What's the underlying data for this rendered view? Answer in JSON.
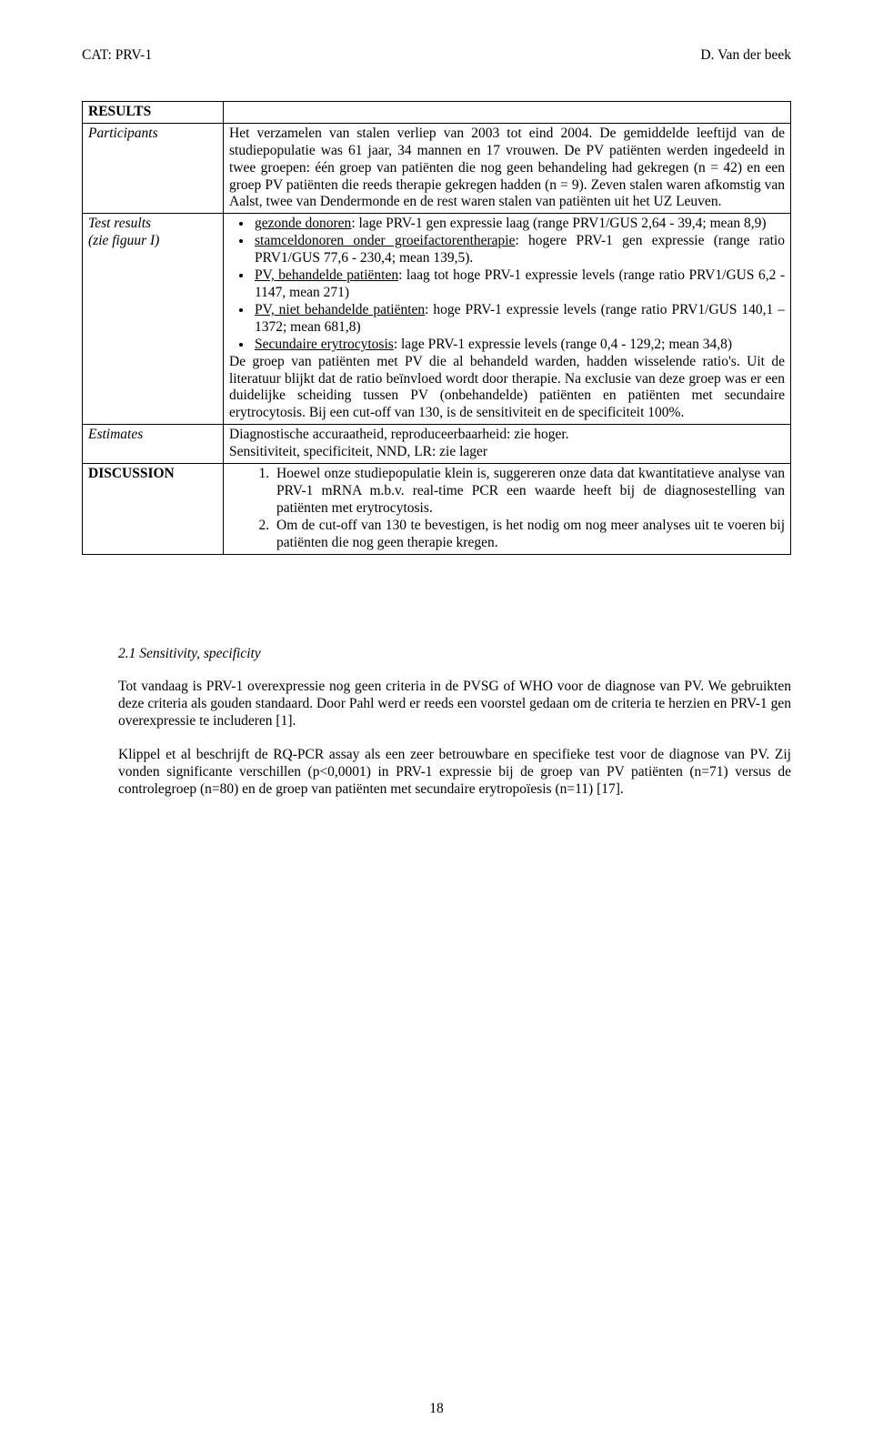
{
  "header": {
    "left": "CAT: PRV-1",
    "right": "D. Van der beek"
  },
  "table": {
    "rows": [
      {
        "label": {
          "html": "<span class='bold'>RESULTS</span>"
        },
        "content": {
          "html": ""
        }
      },
      {
        "label": {
          "html": "<span class='italic'>Participants</span>"
        },
        "content": {
          "html": "<div class='justify'>Het verzamelen van stalen verliep van 2003 tot eind 2004. De gemiddelde leeftijd van de studiepopulatie was 61 jaar, 34 mannen en 17 vrouwen. De PV patiënten werden ingedeeld in twee groepen: één groep van patiënten die nog geen behandeling had gekregen (n = 42) en een groep PV patiënten die reeds therapie gekregen hadden (n = 9). Zeven stalen waren afkomstig van Aalst, twee van Dendermonde en de rest waren stalen van patiënten uit het UZ Leuven.</div>"
        }
      },
      {
        "label": {
          "html": "<span class='italic'>Test results<br>(zie figuur I)</span>"
        },
        "content": {
          "html": "<ul class='bullets'><li><span class='uline'>gezonde donoren</span>: lage PRV-1 gen expressie laag (range PRV1/GUS 2,64 - 39,4; mean 8,9)</li><li><span class='uline'>stamceldonoren onder groeifactorentherapie</span>: hogere PRV-1 gen expressie (range ratio PRV1/GUS 77,6 - 230,4; mean 139,5).</li><li><span class='uline'>PV, behandelde patiënten</span>: laag tot hoge PRV-1 expressie levels (range ratio PRV1/GUS 6,2 - 1147, mean 271)</li><li><span class='uline'>PV, niet behandelde patiënten</span>: hoge PRV-1 expressie levels (range ratio PRV1/GUS 140,1 – 1372; mean 681,8)</li><li><span class='uline'>Secundaire erytrocytosis</span>: lage PRV-1 expressie levels (range 0,4 - 129,2; mean 34,8)</li></ul><div class='justify'>De groep van patiënten met PV die al behandeld warden, hadden wisselende ratio's. Uit de literatuur blijkt dat de ratio beïnvloed wordt door therapie. Na exclusie van deze groep was er een duidelijke scheiding tussen PV (onbehandelde) patiënten en patiënten met secundaire erytrocytosis. Bij een cut-off van 130, is de sensitiviteit en de specificiteit 100%.</div>"
        }
      },
      {
        "label": {
          "html": "<span class='italic'>Estimates</span>"
        },
        "content": {
          "html": "<div class='justify'>Diagnostische accuraatheid, reproduceerbaarheid: zie hoger.<br>Sensitiviteit, specificiteit, NND, LR: zie lager</div>"
        }
      },
      {
        "label": {
          "html": "<span class='bold'>DISCUSSION</span>"
        },
        "content": {
          "html": "<ol class='numlist'><li>Hoewel onze studiepopulatie klein is, suggereren onze data dat kwantitatieve analyse van PRV-1 mRNA m.b.v. real-time PCR een waarde heeft bij de diagnosestelling van patiënten met erytrocytosis.</li><li>Om de cut-off van 130 te bevestigen, is het nodig om nog meer analyses uit te voeren bij patiënten die nog geen therapie kregen.</li></ol>"
        }
      }
    ]
  },
  "section": {
    "title": "2.1 Sensitivity, specificity",
    "p1": "Tot vandaag is PRV-1 overexpressie nog geen criteria in de PVSG of WHO voor de diagnose van PV. We gebruikten deze criteria als gouden standaard. Door Pahl werd er reeds een voorstel gedaan om de criteria te herzien en PRV-1 gen overexpressie te includeren [1].",
    "p2": "Klippel et al beschrijft de RQ-PCR assay als een zeer betrouwbare en specifieke test voor de diagnose van PV. Zij vonden significante verschillen (p<0,0001) in PRV-1 expressie bij de groep van PV patiënten (n=71) versus de controlegroep (n=80) en de groep van patiënten met secundaire erytropoïesis (n=11) [17]."
  },
  "page_number": "18"
}
